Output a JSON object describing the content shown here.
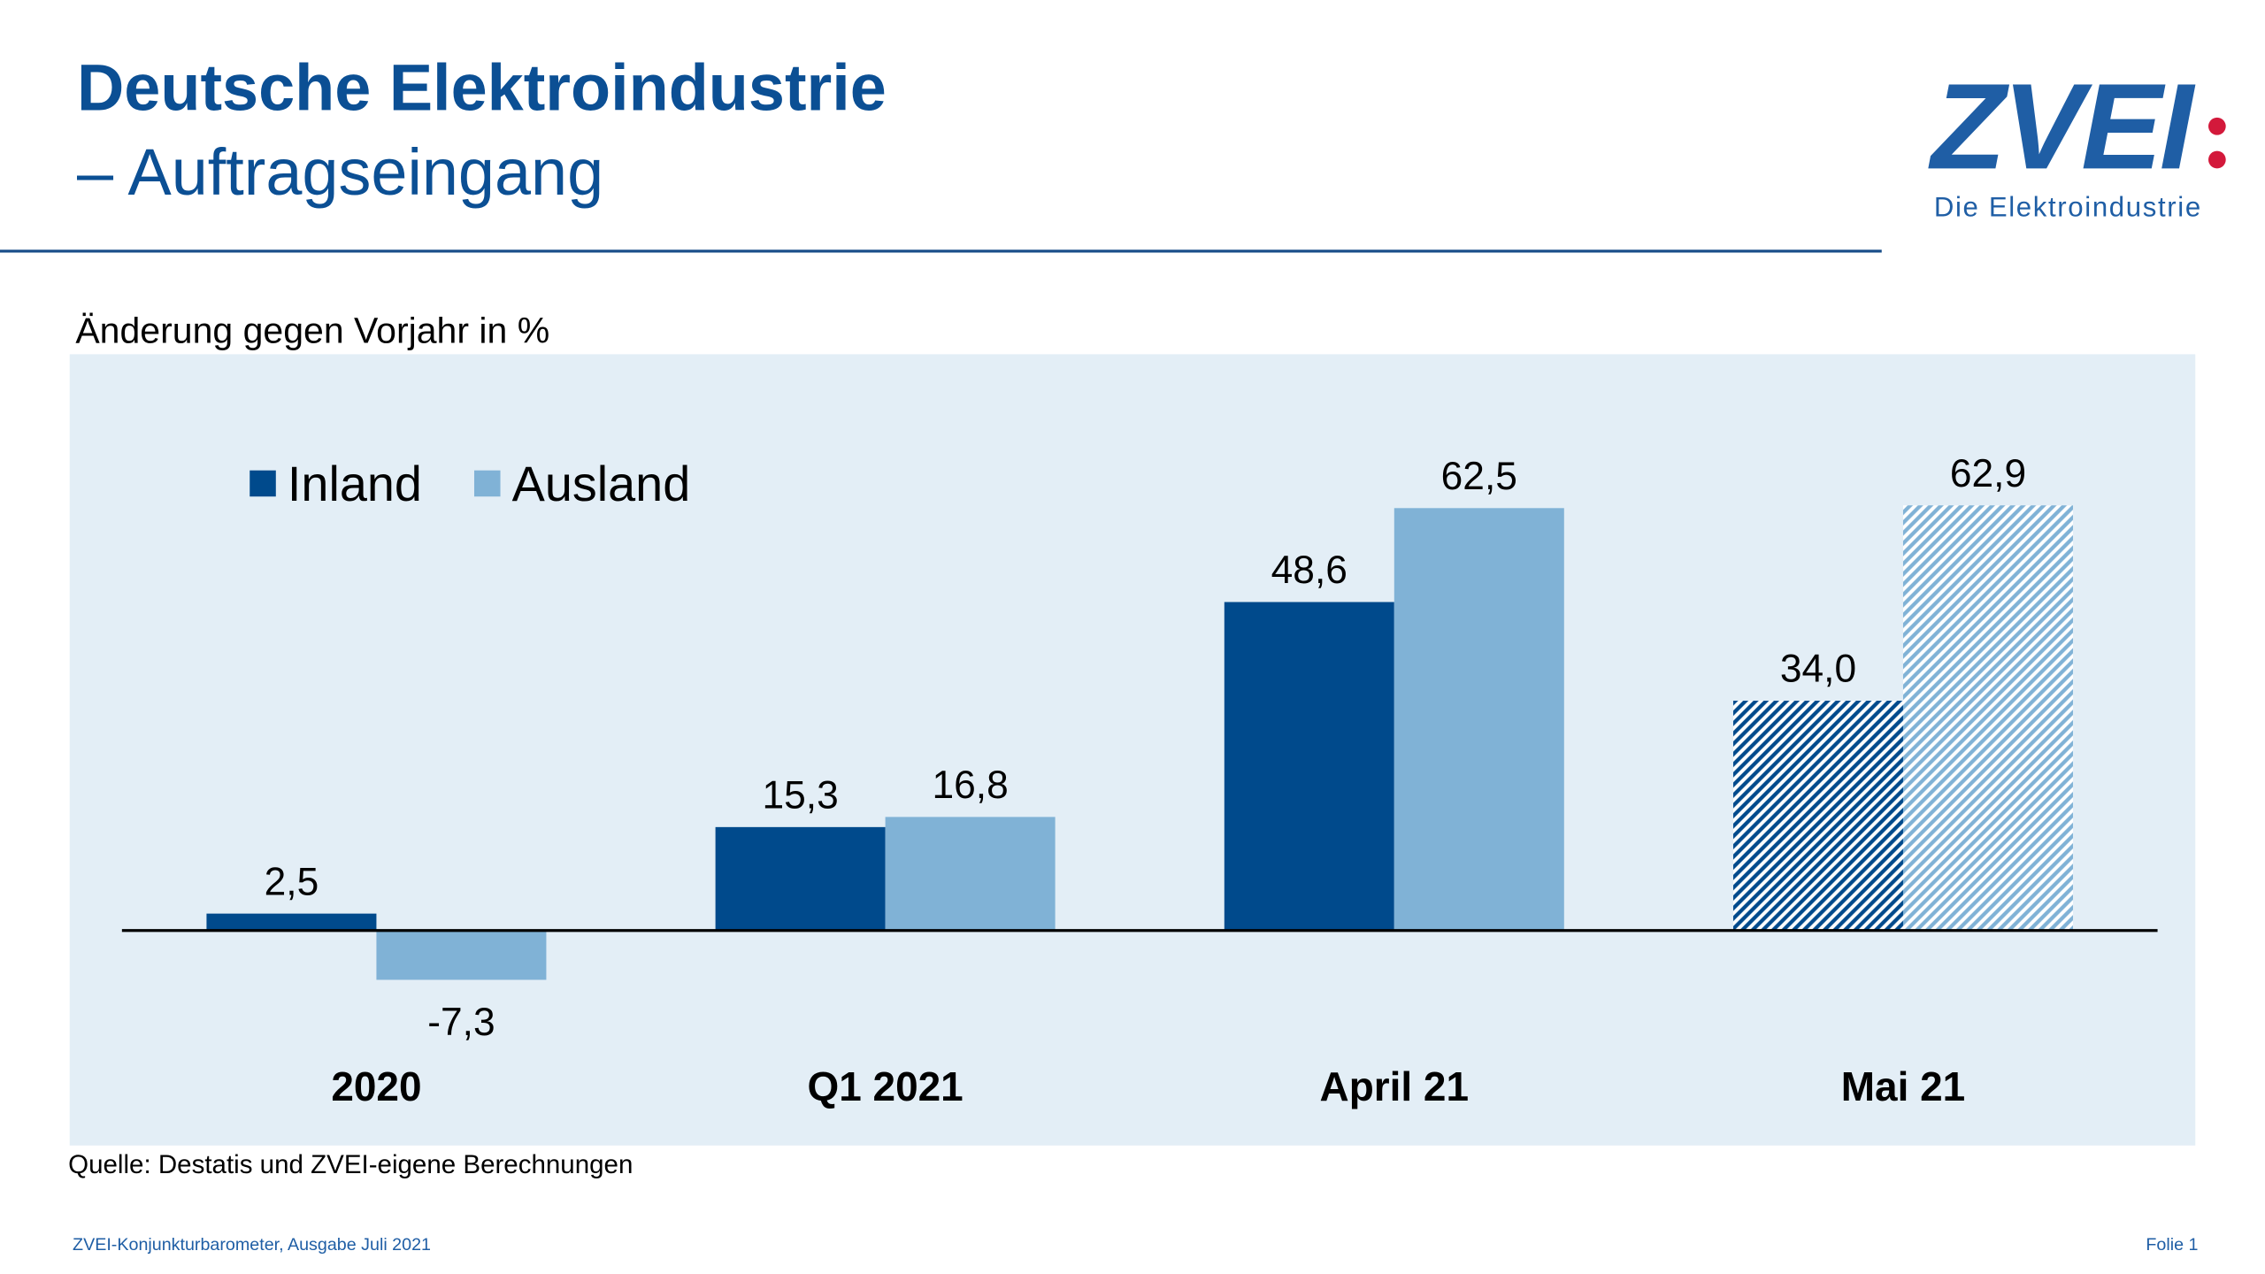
{
  "logo": {
    "name": "ZVEI",
    "tagline": "Die Elektroindustrie"
  },
  "footer": {
    "left": "ZVEI-Konjunkturbarometer, Ausgabe Juli 2021",
    "right": "Folie 1"
  },
  "chart_data": {
    "type": "bar",
    "title": "Deutsche Elektroindustrie",
    "subtitle": "– Auftragseingang",
    "y_label": "Änderung gegen Vorjahr in %",
    "source": "Quelle: Destatis und ZVEI-eigene Berechnungen",
    "categories": [
      "2020",
      "Q1 2021",
      "April 21",
      "Mai 21"
    ],
    "series": [
      {
        "name": "Inland",
        "color": "#004a8c",
        "values": [
          2.5,
          15.3,
          48.6,
          34.0
        ],
        "value_labels": [
          "2,5",
          "15,3",
          "48,6",
          "34,0"
        ]
      },
      {
        "name": "Ausland",
        "color": "#80b2d6",
        "values": [
          -7.3,
          16.8,
          62.5,
          62.9
        ],
        "value_labels": [
          "-7,3",
          "16,8",
          "62,5",
          "62,9"
        ]
      }
    ],
    "hatched": [
      false,
      false,
      false,
      true
    ],
    "ylim": [
      -20,
      80
    ],
    "grid": false,
    "legend": "top-left"
  }
}
